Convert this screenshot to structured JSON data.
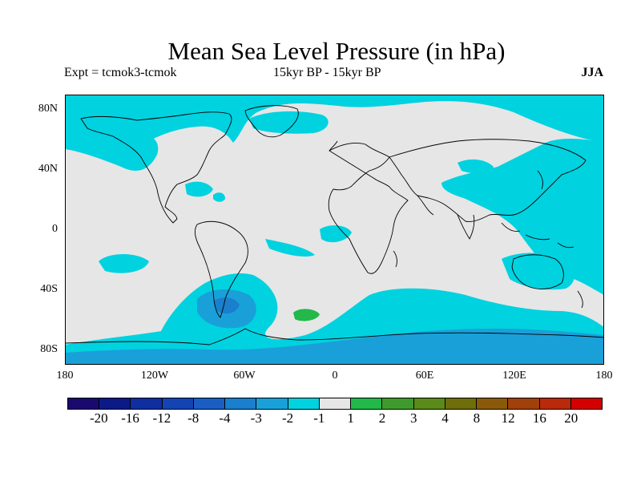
{
  "title": "Mean Sea Level Pressure (in hPa)",
  "subtitle_left": "Expt = tcmok3-tcmok",
  "subtitle_center": "15kyr BP - 15kyr BP",
  "subtitle_right": "JJA",
  "lat_ticks": [
    "80N",
    "40N",
    "0",
    "40S",
    "80S"
  ],
  "lon_ticks": [
    "180",
    "120W",
    "60W",
    "0",
    "60E",
    "120E",
    "180"
  ],
  "colorbar": {
    "colors": [
      "#1a0a6e",
      "#0c1a87",
      "#0f2ea0",
      "#1444b4",
      "#1a5ec4",
      "#1a7fcc",
      "#1aa0d8",
      "#00d2e0",
      "#e6e6e6",
      "#22b84a",
      "#3f9a2e",
      "#5a8a1a",
      "#6e6e0a",
      "#8a5a0a",
      "#a0400a",
      "#b82a0a",
      "#d40000"
    ],
    "labels": [
      "-20",
      "-16",
      "-12",
      "-8",
      "-4",
      "-3",
      "-2",
      "-1",
      "1",
      "2",
      "3",
      "4",
      "8",
      "12",
      "16",
      "20"
    ]
  },
  "map_colors": {
    "neutral": "#e6e6e6",
    "minus2": "#00d2e0",
    "minus3": "#1aa0d8",
    "minus4": "#1a7fcc",
    "plus1": "#22b84a",
    "coast": "#000000"
  }
}
